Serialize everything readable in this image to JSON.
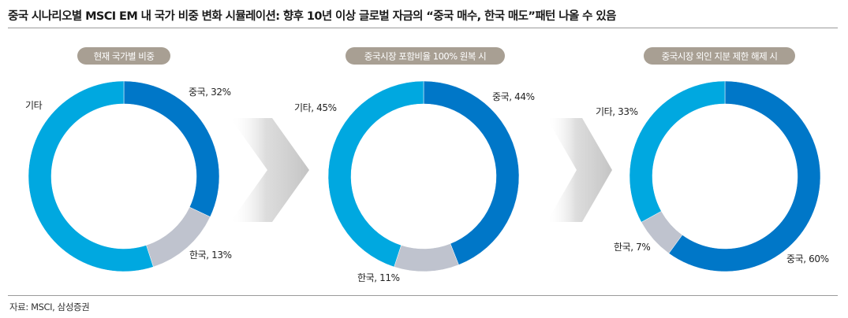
{
  "title": "중국 시나리오별 MSCI EM 내 국가 비중 변화 시뮬레이션: 향후 10년 이상 글로벌 자금의 “중국 매수, 한국 매도”패턴 나올 수 있음",
  "source": "자료: MSCI, 삼성증권",
  "colors": {
    "china": "#0077C8",
    "korea": "#BFC3CE",
    "others": "#00A8E0",
    "pill": "#A89F93",
    "arrow": "#CFCFCF"
  },
  "chart_data": [
    {
      "type": "pie",
      "title": "현재 국가별 비중",
      "categories": [
        "중국",
        "한국",
        "기타"
      ],
      "values": [
        32,
        13,
        55
      ],
      "labels": [
        "중국, 32%",
        "한국, 13%",
        "기타"
      ]
    },
    {
      "type": "pie",
      "title": "중국시장 포함비율 100% 원복 시",
      "categories": [
        "중국",
        "한국",
        "기타"
      ],
      "values": [
        44,
        11,
        45
      ],
      "labels": [
        "중국, 44%",
        "한국, 11%",
        "기타, 45%"
      ]
    },
    {
      "type": "pie",
      "title": "중국시장 외인 지분 제한 해제 시",
      "categories": [
        "중국",
        "한국",
        "기타"
      ],
      "values": [
        60,
        7,
        33
      ],
      "labels": [
        "중국, 60%",
        "한국, 7%",
        "기타, 33%"
      ]
    }
  ]
}
